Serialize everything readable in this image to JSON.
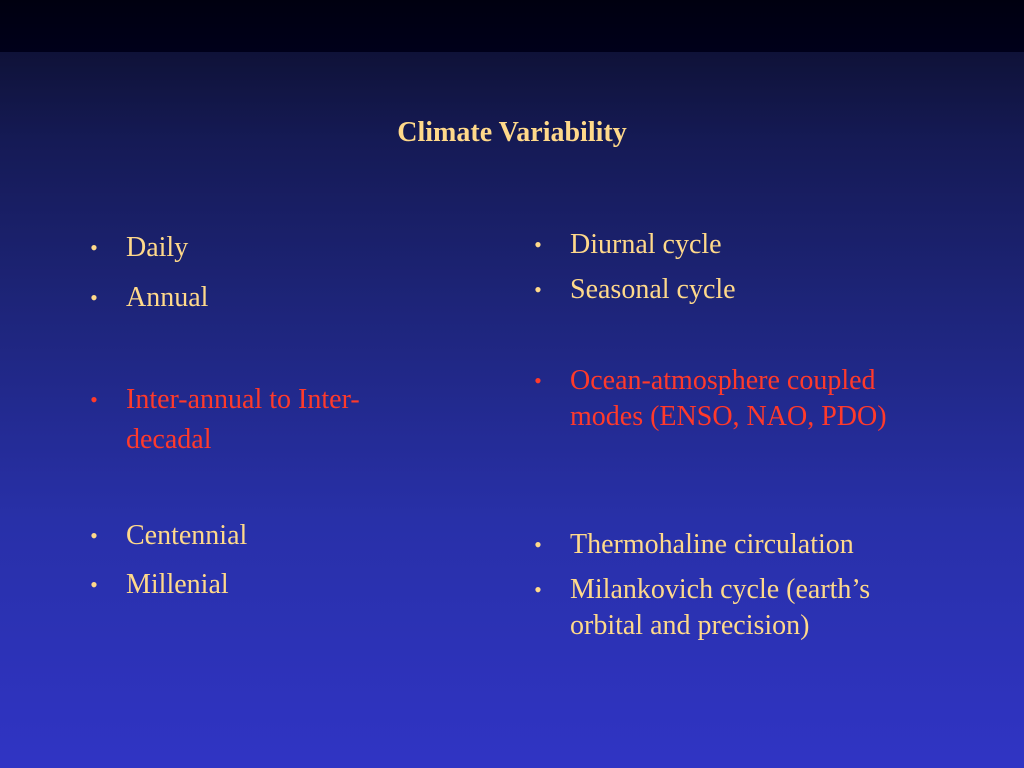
{
  "slide": {
    "title": "Climate Variability",
    "left_items": [
      {
        "text": "Daily"
      },
      {
        "text": "Annual"
      },
      {
        "text": "Inter-annual to Inter-decadal"
      },
      {
        "text": "Centennial"
      },
      {
        "text": "Millenial"
      }
    ],
    "right_items": [
      {
        "text": "Diurnal cycle"
      },
      {
        "text": "Seasonal cycle"
      },
      {
        "text": "Ocean-atmosphere coupled modes (ENSO, NAO, PDO)"
      },
      {
        "text": "Thermohaline circulation"
      },
      {
        "text": "Milankovich cycle (earth’s orbital and precision)"
      }
    ],
    "bullet_glyph": "•",
    "colors": {
      "text": "#ffd98a",
      "highlight": "#ff3a2a",
      "background_top": "#000010",
      "background_bottom": "#3034c4"
    }
  }
}
